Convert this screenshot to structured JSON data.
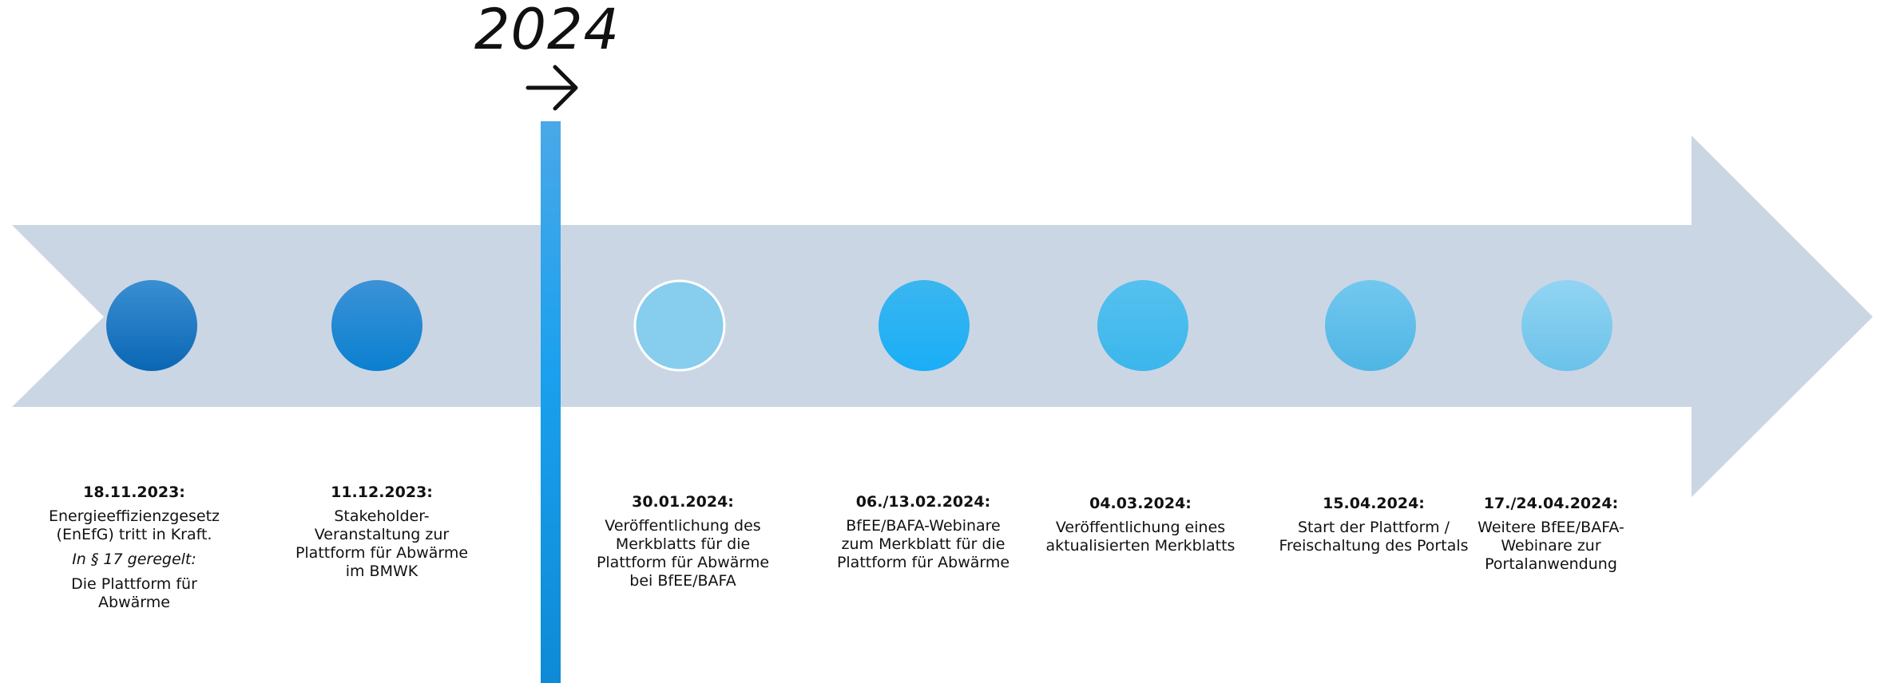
{
  "year": {
    "label": "2024",
    "arrow_icon": "right-arrow-icon"
  },
  "colors": {
    "arrow_band": "#cbd6e4",
    "divider": "#1aa0ee",
    "dot_1": "#0a6fbd",
    "dot_2": "#0a84d2",
    "dot_3": "#86cdee",
    "dot_4": "#22b2f3",
    "dot_5": "#43bdf0",
    "dot_6": "#5fc0ec",
    "dot_7": "#7fcbee"
  },
  "events": [
    {
      "date": "18.11.2023:",
      "lines": [
        "Energieeffizienzgesetz",
        "(EnEfG) tritt in Kraft."
      ],
      "italic": "In § 17 geregelt:",
      "after": [
        "Die Plattform für",
        "Abwärme"
      ]
    },
    {
      "date": "11.12.2023:",
      "lines": [
        "Stakeholder-",
        "Veranstaltung zur",
        "Plattform für Abwärme",
        "im BMWK"
      ]
    },
    {
      "date": "30.01.2024:",
      "lines": [
        "Veröffentlichung des",
        "Merkblatts für die",
        "Plattform für Abwärme",
        "bei BfEE/BAFA"
      ]
    },
    {
      "date": "06./13.02.2024:",
      "lines": [
        "BfEE/BAFA-Webinare",
        "zum Merkblatt für die",
        "Plattform für Abwärme"
      ]
    },
    {
      "date": "04.03.2024:",
      "lines": [
        "Veröffentlichung eines",
        "aktualisierten Merkblatts"
      ]
    },
    {
      "date": "15.04.2024:",
      "lines": [
        "Start der Plattform /",
        "Freischaltung des Portals"
      ]
    },
    {
      "date": "17./24.04.2024:",
      "lines": [
        "Weitere BfEE/BAFA-",
        "Webinare zur",
        "Portalanwendung"
      ]
    }
  ]
}
